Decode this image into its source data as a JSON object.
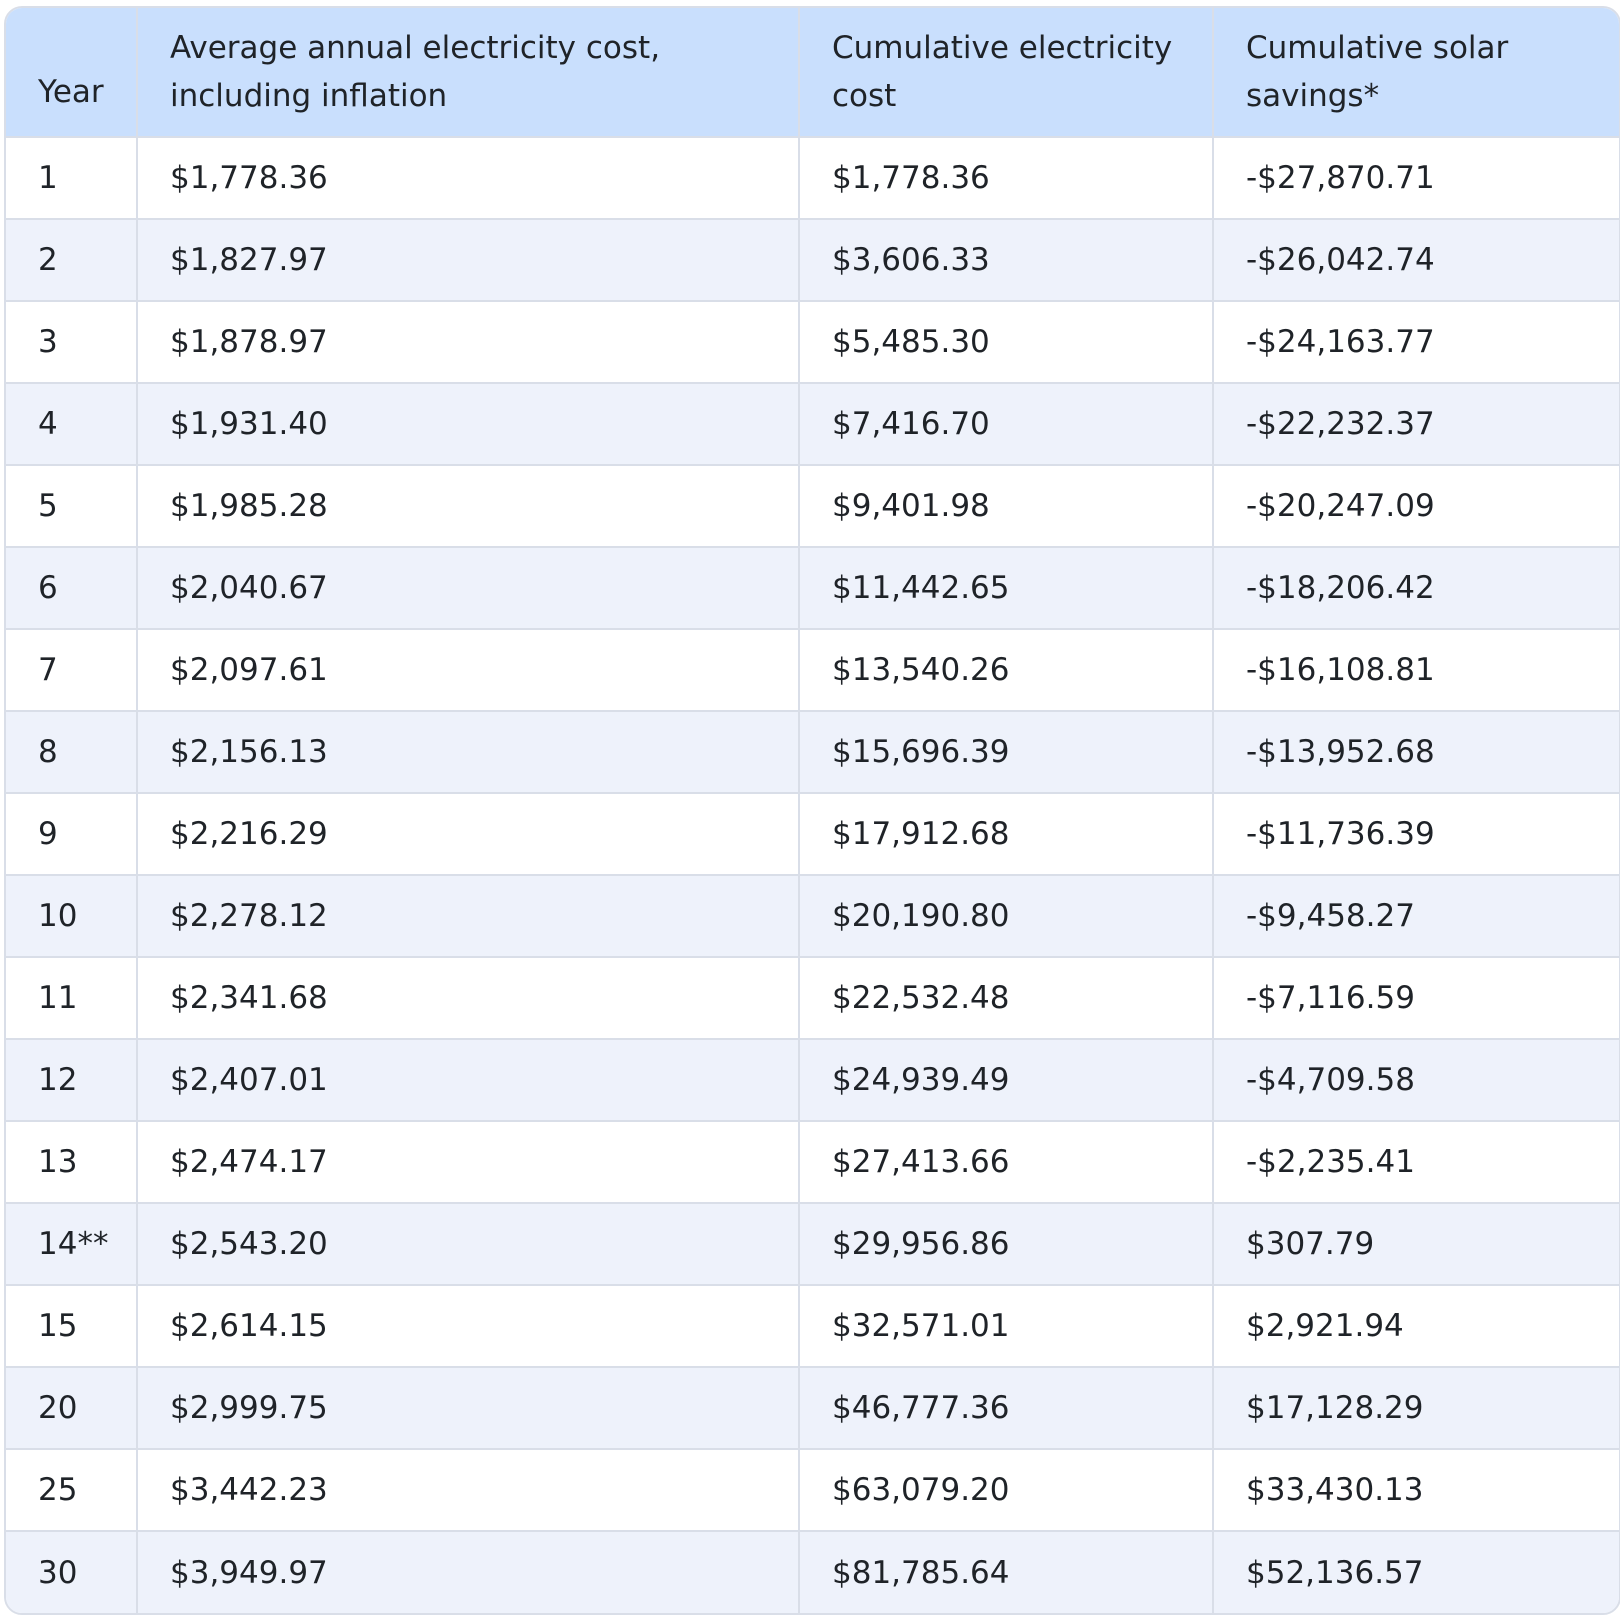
{
  "table": {
    "headers": {
      "year": "Year",
      "annual": "Average annual electricity cost, including inflation",
      "cumulative": "Cumulative electricity cost",
      "savings": "Cumulative solar savings*"
    },
    "rows": [
      {
        "year": "1",
        "annual": "$1,778.36",
        "cumulative": "$1,778.36",
        "savings": "-$27,870.71"
      },
      {
        "year": "2",
        "annual": "$1,827.97",
        "cumulative": "$3,606.33",
        "savings": "-$26,042.74"
      },
      {
        "year": "3",
        "annual": "$1,878.97",
        "cumulative": "$5,485.30",
        "savings": "-$24,163.77"
      },
      {
        "year": "4",
        "annual": "$1,931.40",
        "cumulative": "$7,416.70",
        "savings": "-$22,232.37"
      },
      {
        "year": "5",
        "annual": "$1,985.28",
        "cumulative": "$9,401.98",
        "savings": "-$20,247.09"
      },
      {
        "year": "6",
        "annual": "$2,040.67",
        "cumulative": "$11,442.65",
        "savings": "-$18,206.42"
      },
      {
        "year": "7",
        "annual": "$2,097.61",
        "cumulative": "$13,540.26",
        "savings": "-$16,108.81"
      },
      {
        "year": "8",
        "annual": "$2,156.13",
        "cumulative": "$15,696.39",
        "savings": "-$13,952.68"
      },
      {
        "year": "9",
        "annual": "$2,216.29",
        "cumulative": "$17,912.68",
        "savings": "-$11,736.39"
      },
      {
        "year": "10",
        "annual": "$2,278.12",
        "cumulative": "$20,190.80",
        "savings": "-$9,458.27"
      },
      {
        "year": "11",
        "annual": "$2,341.68",
        "cumulative": "$22,532.48",
        "savings": "-$7,116.59"
      },
      {
        "year": "12",
        "annual": "$2,407.01",
        "cumulative": "$24,939.49",
        "savings": "-$4,709.58"
      },
      {
        "year": "13",
        "annual": "$2,474.17",
        "cumulative": "$27,413.66",
        "savings": "-$2,235.41"
      },
      {
        "year": "14**",
        "annual": "$2,543.20",
        "cumulative": "$29,956.86",
        "savings": "$307.79"
      },
      {
        "year": "15",
        "annual": "$2,614.15",
        "cumulative": "$32,571.01",
        "savings": "$2,921.94"
      },
      {
        "year": "20",
        "annual": "$2,999.75",
        "cumulative": "$46,777.36",
        "savings": "$17,128.29"
      },
      {
        "year": "25",
        "annual": "$3,442.23",
        "cumulative": "$63,079.20",
        "savings": "$33,430.13"
      },
      {
        "year": "30",
        "annual": "$3,949.97",
        "cumulative": "$81,785.64",
        "savings": "$52,136.57"
      }
    ]
  }
}
